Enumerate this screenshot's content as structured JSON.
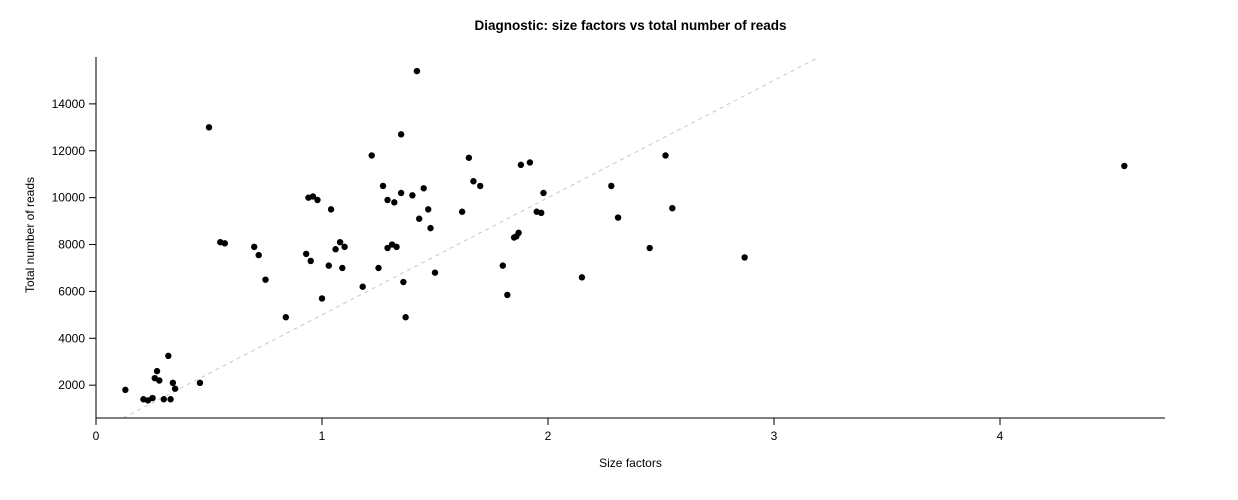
{
  "chart_data": {
    "type": "scatter",
    "title": "Diagnostic: size factors vs total number of reads",
    "xlabel": "Size factors",
    "ylabel": "Total number of reads",
    "xlim": [
      0,
      4.73
    ],
    "ylim": [
      600,
      16000
    ],
    "x_ticks": [
      0,
      1,
      2,
      3,
      4
    ],
    "y_ticks": [
      2000,
      4000,
      6000,
      8000,
      10000,
      12000,
      14000
    ],
    "grid": false,
    "legend": "none",
    "point_color": "#000000",
    "axis_color": "#000000",
    "reference_line": {
      "style": "dashed",
      "slope": 5000,
      "intercept": 0,
      "color": "#c8c8c8"
    },
    "points": [
      [
        0.13,
        1800
      ],
      [
        0.21,
        1400
      ],
      [
        0.23,
        1350
      ],
      [
        0.25,
        1450
      ],
      [
        0.26,
        2300
      ],
      [
        0.27,
        2600
      ],
      [
        0.28,
        2200
      ],
      [
        0.3,
        1400
      ],
      [
        0.32,
        3250
      ],
      [
        0.33,
        1400
      ],
      [
        0.34,
        2100
      ],
      [
        0.35,
        1850
      ],
      [
        0.46,
        2100
      ],
      [
        0.5,
        13000
      ],
      [
        0.55,
        8100
      ],
      [
        0.57,
        8050
      ],
      [
        0.7,
        7900
      ],
      [
        0.72,
        7550
      ],
      [
        0.75,
        6500
      ],
      [
        0.84,
        4900
      ],
      [
        0.93,
        7600
      ],
      [
        0.94,
        10000
      ],
      [
        0.96,
        10050
      ],
      [
        0.98,
        9900
      ],
      [
        0.95,
        7300
      ],
      [
        1.0,
        5700
      ],
      [
        1.03,
        7100
      ],
      [
        1.04,
        9500
      ],
      [
        1.06,
        7800
      ],
      [
        1.08,
        8100
      ],
      [
        1.09,
        7000
      ],
      [
        1.1,
        7900
      ],
      [
        1.18,
        6200
      ],
      [
        1.22,
        11800
      ],
      [
        1.25,
        7000
      ],
      [
        1.27,
        10500
      ],
      [
        1.29,
        9900
      ],
      [
        1.29,
        7850
      ],
      [
        1.31,
        8000
      ],
      [
        1.32,
        9800
      ],
      [
        1.33,
        7900
      ],
      [
        1.35,
        12700
      ],
      [
        1.35,
        10200
      ],
      [
        1.36,
        6400
      ],
      [
        1.37,
        4900
      ],
      [
        1.4,
        10100
      ],
      [
        1.42,
        15400
      ],
      [
        1.43,
        9100
      ],
      [
        1.45,
        10400
      ],
      [
        1.47,
        9500
      ],
      [
        1.48,
        8700
      ],
      [
        1.5,
        6800
      ],
      [
        1.62,
        9400
      ],
      [
        1.65,
        11700
      ],
      [
        1.67,
        10700
      ],
      [
        1.7,
        10500
      ],
      [
        1.8,
        7100
      ],
      [
        1.82,
        5850
      ],
      [
        1.85,
        8300
      ],
      [
        1.86,
        8350
      ],
      [
        1.87,
        8500
      ],
      [
        1.88,
        11400
      ],
      [
        1.92,
        11500
      ],
      [
        1.95,
        9400
      ],
      [
        1.97,
        9350
      ],
      [
        1.98,
        10200
      ],
      [
        2.15,
        6600
      ],
      [
        2.28,
        10500
      ],
      [
        2.31,
        9150
      ],
      [
        2.45,
        7850
      ],
      [
        2.52,
        11800
      ],
      [
        2.55,
        9550
      ],
      [
        2.87,
        7450
      ],
      [
        4.55,
        11350
      ]
    ]
  }
}
